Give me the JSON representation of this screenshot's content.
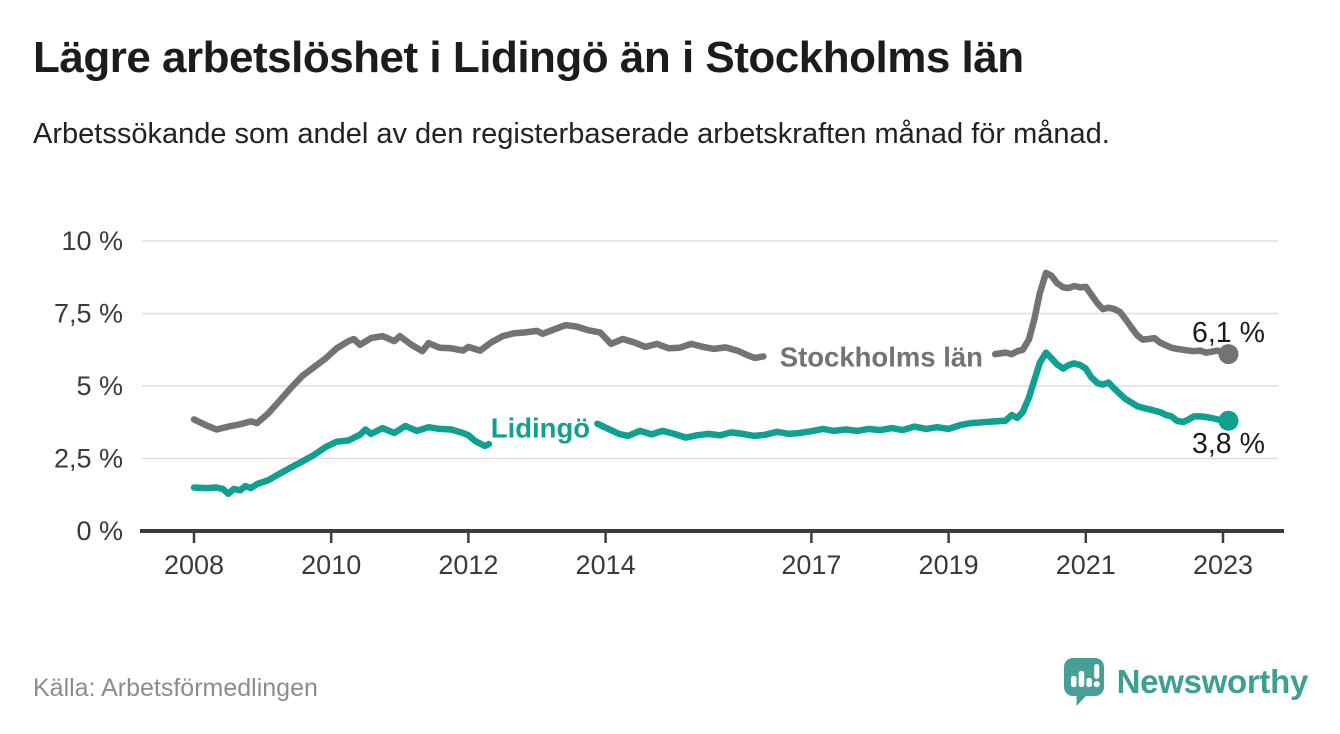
{
  "footer": {
    "source": "Källa: Arbetsförmedlingen",
    "brand": "Newsworthy",
    "brand_color": "#3e9f93"
  },
  "chart_data": {
    "type": "line",
    "title": "Lägre arbetslöshet i Lidingö än i Stockholms län",
    "subtitle": "Arbetssökande som andel av den registerbaserade arbetskraften månad för månad.",
    "source": "Källa: Arbetsförmedlingen",
    "grid": true,
    "legend_position": "inline-on-line",
    "x_axis": {
      "min": 2007.6,
      "max": 2023.6,
      "ticks": [
        2008,
        2010,
        2012,
        2014,
        2017,
        2019,
        2021,
        2023
      ],
      "labels": [
        "2008",
        "2010",
        "2012",
        "2014",
        "2017",
        "2019",
        "2021",
        "2023"
      ]
    },
    "y_axis": {
      "min": 0,
      "max": 10,
      "ticks": [
        0,
        2.5,
        5,
        7.5,
        10
      ],
      "labels": [
        "0 %",
        "2,5 %",
        "5 %",
        "7,5 %",
        "10 %"
      ]
    },
    "series": [
      {
        "name": "Stockholms län",
        "color": "#737373",
        "line_label": {
          "text": "Stockholms län",
          "year": 2018.02,
          "value": 6.0
        },
        "end_point": {
          "year": 2023.08,
          "value": 6.1,
          "label": "6,1 %",
          "label_side": "above"
        },
        "segments": [
          [
            [
              2008.0,
              3.85
            ],
            [
              2008.17,
              3.65
            ],
            [
              2008.33,
              3.5
            ],
            [
              2008.5,
              3.6
            ],
            [
              2008.67,
              3.68
            ],
            [
              2008.83,
              3.78
            ],
            [
              2008.92,
              3.72
            ],
            [
              2009.08,
              4.05
            ],
            [
              2009.25,
              4.5
            ],
            [
              2009.42,
              4.95
            ],
            [
              2009.58,
              5.35
            ],
            [
              2009.75,
              5.65
            ],
            [
              2009.92,
              5.95
            ],
            [
              2010.08,
              6.3
            ],
            [
              2010.25,
              6.55
            ],
            [
              2010.33,
              6.62
            ],
            [
              2010.42,
              6.42
            ],
            [
              2010.58,
              6.65
            ],
            [
              2010.75,
              6.72
            ],
            [
              2010.92,
              6.55
            ],
            [
              2011.0,
              6.72
            ],
            [
              2011.17,
              6.42
            ],
            [
              2011.33,
              6.2
            ],
            [
              2011.42,
              6.48
            ],
            [
              2011.58,
              6.32
            ],
            [
              2011.75,
              6.3
            ],
            [
              2011.92,
              6.22
            ],
            [
              2012.0,
              6.35
            ],
            [
              2012.17,
              6.22
            ],
            [
              2012.33,
              6.5
            ],
            [
              2012.5,
              6.72
            ],
            [
              2012.67,
              6.82
            ],
            [
              2012.83,
              6.85
            ],
            [
              2013.0,
              6.9
            ],
            [
              2013.08,
              6.8
            ],
            [
              2013.25,
              6.95
            ],
            [
              2013.42,
              7.1
            ],
            [
              2013.58,
              7.05
            ],
            [
              2013.75,
              6.92
            ],
            [
              2013.92,
              6.85
            ],
            [
              2014.08,
              6.45
            ],
            [
              2014.25,
              6.62
            ],
            [
              2014.42,
              6.5
            ],
            [
              2014.58,
              6.35
            ],
            [
              2014.75,
              6.45
            ],
            [
              2014.92,
              6.3
            ],
            [
              2015.08,
              6.32
            ],
            [
              2015.25,
              6.45
            ],
            [
              2015.42,
              6.35
            ],
            [
              2015.58,
              6.28
            ],
            [
              2015.75,
              6.33
            ],
            [
              2015.92,
              6.22
            ],
            [
              2016.08,
              6.05
            ],
            [
              2016.18,
              5.97
            ],
            [
              2016.3,
              6.02
            ]
          ],
          [
            [
              2019.68,
              6.1
            ],
            [
              2019.83,
              6.15
            ],
            [
              2019.92,
              6.1
            ],
            [
              2020.0,
              6.2
            ],
            [
              2020.08,
              6.25
            ],
            [
              2020.17,
              6.6
            ],
            [
              2020.25,
              7.3
            ],
            [
              2020.33,
              8.2
            ],
            [
              2020.42,
              8.9
            ],
            [
              2020.5,
              8.8
            ],
            [
              2020.58,
              8.55
            ],
            [
              2020.67,
              8.4
            ],
            [
              2020.75,
              8.38
            ],
            [
              2020.83,
              8.45
            ],
            [
              2020.92,
              8.4
            ],
            [
              2021.0,
              8.42
            ],
            [
              2021.08,
              8.15
            ],
            [
              2021.17,
              7.85
            ],
            [
              2021.25,
              7.65
            ],
            [
              2021.33,
              7.7
            ],
            [
              2021.42,
              7.65
            ],
            [
              2021.5,
              7.55
            ],
            [
              2021.58,
              7.3
            ],
            [
              2021.67,
              7.0
            ],
            [
              2021.75,
              6.75
            ],
            [
              2021.83,
              6.6
            ],
            [
              2021.92,
              6.62
            ],
            [
              2022.0,
              6.65
            ],
            [
              2022.08,
              6.5
            ],
            [
              2022.17,
              6.4
            ],
            [
              2022.25,
              6.32
            ],
            [
              2022.33,
              6.28
            ],
            [
              2022.42,
              6.25
            ],
            [
              2022.5,
              6.22
            ],
            [
              2022.58,
              6.2
            ],
            [
              2022.67,
              6.22
            ],
            [
              2022.75,
              6.15
            ],
            [
              2022.83,
              6.18
            ],
            [
              2022.92,
              6.22
            ],
            [
              2023.0,
              6.15
            ],
            [
              2023.08,
              6.1
            ]
          ]
        ]
      },
      {
        "name": "Lidingö",
        "color": "#10a090",
        "line_label": {
          "text": "Lidingö",
          "year": 2013.05,
          "value": 3.55
        },
        "end_point": {
          "year": 2023.08,
          "value": 3.8,
          "label": "3,8 %",
          "label_side": "below"
        },
        "segments": [
          [
            [
              2008.0,
              1.5
            ],
            [
              2008.17,
              1.48
            ],
            [
              2008.33,
              1.5
            ],
            [
              2008.42,
              1.45
            ],
            [
              2008.5,
              1.28
            ],
            [
              2008.58,
              1.45
            ],
            [
              2008.67,
              1.4
            ],
            [
              2008.75,
              1.55
            ],
            [
              2008.83,
              1.48
            ],
            [
              2008.92,
              1.62
            ],
            [
              2009.08,
              1.75
            ],
            [
              2009.25,
              1.98
            ],
            [
              2009.42,
              2.2
            ],
            [
              2009.58,
              2.4
            ],
            [
              2009.75,
              2.62
            ],
            [
              2009.92,
              2.9
            ],
            [
              2010.08,
              3.08
            ],
            [
              2010.25,
              3.12
            ],
            [
              2010.42,
              3.32
            ],
            [
              2010.5,
              3.5
            ],
            [
              2010.58,
              3.35
            ],
            [
              2010.75,
              3.55
            ],
            [
              2010.92,
              3.38
            ],
            [
              2011.08,
              3.62
            ],
            [
              2011.25,
              3.45
            ],
            [
              2011.42,
              3.58
            ],
            [
              2011.58,
              3.52
            ],
            [
              2011.75,
              3.5
            ],
            [
              2011.92,
              3.38
            ],
            [
              2012.0,
              3.3
            ],
            [
              2012.1,
              3.1
            ],
            [
              2012.24,
              2.93
            ],
            [
              2012.3,
              3.0
            ]
          ],
          [
            [
              2013.88,
              3.7
            ],
            [
              2014.04,
              3.52
            ],
            [
              2014.2,
              3.35
            ],
            [
              2014.33,
              3.28
            ],
            [
              2014.5,
              3.45
            ],
            [
              2014.67,
              3.33
            ],
            [
              2014.83,
              3.45
            ],
            [
              2015.0,
              3.35
            ],
            [
              2015.17,
              3.22
            ],
            [
              2015.33,
              3.3
            ],
            [
              2015.5,
              3.35
            ],
            [
              2015.67,
              3.3
            ],
            [
              2015.83,
              3.4
            ],
            [
              2016.0,
              3.35
            ],
            [
              2016.17,
              3.28
            ],
            [
              2016.33,
              3.32
            ],
            [
              2016.5,
              3.42
            ],
            [
              2016.67,
              3.35
            ],
            [
              2016.83,
              3.38
            ],
            [
              2017.0,
              3.44
            ],
            [
              2017.17,
              3.52
            ],
            [
              2017.33,
              3.45
            ],
            [
              2017.5,
              3.5
            ],
            [
              2017.67,
              3.45
            ],
            [
              2017.83,
              3.52
            ],
            [
              2018.0,
              3.48
            ],
            [
              2018.17,
              3.55
            ],
            [
              2018.33,
              3.48
            ],
            [
              2018.5,
              3.6
            ],
            [
              2018.67,
              3.52
            ],
            [
              2018.83,
              3.58
            ],
            [
              2019.0,
              3.52
            ],
            [
              2019.17,
              3.65
            ],
            [
              2019.33,
              3.72
            ],
            [
              2019.5,
              3.75
            ],
            [
              2019.67,
              3.78
            ],
            [
              2019.83,
              3.8
            ],
            [
              2019.92,
              4.0
            ],
            [
              2020.0,
              3.9
            ],
            [
              2020.08,
              4.1
            ],
            [
              2020.17,
              4.6
            ],
            [
              2020.25,
              5.2
            ],
            [
              2020.33,
              5.8
            ],
            [
              2020.42,
              6.15
            ],
            [
              2020.5,
              5.95
            ],
            [
              2020.58,
              5.75
            ],
            [
              2020.67,
              5.6
            ],
            [
              2020.75,
              5.72
            ],
            [
              2020.83,
              5.78
            ],
            [
              2020.92,
              5.72
            ],
            [
              2021.0,
              5.6
            ],
            [
              2021.08,
              5.3
            ],
            [
              2021.17,
              5.1
            ],
            [
              2021.25,
              5.05
            ],
            [
              2021.33,
              5.12
            ],
            [
              2021.42,
              4.9
            ],
            [
              2021.5,
              4.72
            ],
            [
              2021.58,
              4.55
            ],
            [
              2021.67,
              4.42
            ],
            [
              2021.75,
              4.3
            ],
            [
              2021.83,
              4.25
            ],
            [
              2021.92,
              4.2
            ],
            [
              2022.0,
              4.15
            ],
            [
              2022.08,
              4.1
            ],
            [
              2022.17,
              4.0
            ],
            [
              2022.25,
              3.95
            ],
            [
              2022.33,
              3.8
            ],
            [
              2022.42,
              3.76
            ],
            [
              2022.5,
              3.85
            ],
            [
              2022.58,
              3.95
            ],
            [
              2022.67,
              3.95
            ],
            [
              2022.75,
              3.93
            ],
            [
              2022.83,
              3.9
            ],
            [
              2022.92,
              3.85
            ],
            [
              2023.0,
              3.8
            ],
            [
              2023.08,
              3.78
            ]
          ]
        ]
      }
    ]
  }
}
